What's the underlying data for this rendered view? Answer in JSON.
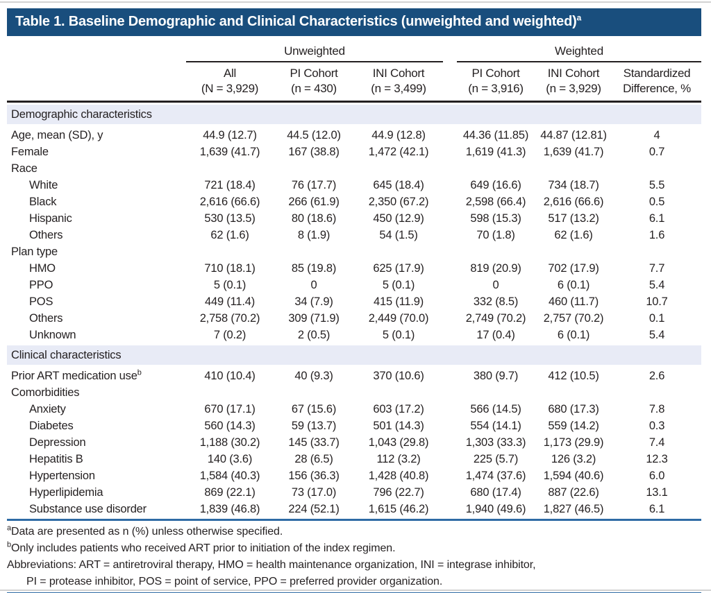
{
  "title": {
    "text": "Table 1. Baseline Demographic and Clinical Characteristics (unweighted and weighted)",
    "sup": "a"
  },
  "colors": {
    "title_bar": "#194e7d",
    "section_band": "#e8ebf6",
    "rule_blue": "#2e6ba5",
    "text": "#231f20"
  },
  "table": {
    "group_headers": {
      "unweighted": "Unweighted",
      "weighted": "Weighted"
    },
    "columns": [
      {
        "line1": "All",
        "line2": "(N = 3,929)"
      },
      {
        "line1": "PI Cohort",
        "line2": "(n = 430)"
      },
      {
        "line1": "INI Cohort",
        "line2": "(n = 3,499)"
      },
      {
        "line1": "PI Cohort",
        "line2": "(n = 3,916)"
      },
      {
        "line1": "INI Cohort",
        "line2": "(n = 3,929)"
      },
      {
        "line1": "Standardized",
        "line2": "Difference, %"
      }
    ],
    "rows": [
      {
        "type": "section",
        "label": "Demographic characteristics"
      },
      {
        "type": "data",
        "label": "Age, mean (SD), y",
        "indent": false,
        "values": [
          "44.9 (12.7)",
          "44.5 (12.0)",
          "44.9 (12.8)",
          "44.36 (11.85)",
          "44.87 (12.81)",
          "4"
        ]
      },
      {
        "type": "data",
        "label": "Female",
        "indent": false,
        "values": [
          "1,639 (41.7)",
          "167 (38.8)",
          "1,472 (42.1)",
          "1,619 (41.3)",
          "1,639 (41.7)",
          "0.7"
        ]
      },
      {
        "type": "subheader",
        "label": "Race"
      },
      {
        "type": "data",
        "label": "White",
        "indent": true,
        "values": [
          "721 (18.4)",
          "76 (17.7)",
          "645 (18.4)",
          "649 (16.6)",
          "734 (18.7)",
          "5.5"
        ]
      },
      {
        "type": "data",
        "label": "Black",
        "indent": true,
        "values": [
          "2,616 (66.6)",
          "266 (61.9)",
          "2,350 (67.2)",
          "2,598 (66.4)",
          "2,616 (66.6)",
          "0.5"
        ]
      },
      {
        "type": "data",
        "label": "Hispanic",
        "indent": true,
        "values": [
          "530 (13.5)",
          "80 (18.6)",
          "450 (12.9)",
          "598 (15.3)",
          "517 (13.2)",
          "6.1"
        ]
      },
      {
        "type": "data",
        "label": "Others",
        "indent": true,
        "values": [
          "62 (1.6)",
          "8 (1.9)",
          "54 (1.5)",
          "70 (1.8)",
          "62 (1.6)",
          "1.6"
        ]
      },
      {
        "type": "subheader",
        "label": "Plan type"
      },
      {
        "type": "data",
        "label": "HMO",
        "indent": true,
        "values": [
          "710 (18.1)",
          "85 (19.8)",
          "625 (17.9)",
          "819 (20.9)",
          "702 (17.9)",
          "7.7"
        ]
      },
      {
        "type": "data",
        "label": "PPO",
        "indent": true,
        "values": [
          "5 (0.1)",
          "0",
          "5 (0.1)",
          "0",
          "6 (0.1)",
          "5.4"
        ]
      },
      {
        "type": "data",
        "label": "POS",
        "indent": true,
        "values": [
          "449 (11.4)",
          "34 (7.9)",
          "415 (11.9)",
          "332 (8.5)",
          "460 (11.7)",
          "10.7"
        ]
      },
      {
        "type": "data",
        "label": "Others",
        "indent": true,
        "values": [
          "2,758 (70.2)",
          "309 (71.9)",
          "2,449 (70.0)",
          "2,749 (70.2)",
          "2,757 (70.2)",
          "0.1"
        ]
      },
      {
        "type": "data",
        "label": "Unknown",
        "indent": true,
        "values": [
          "7 (0.2)",
          "2 (0.5)",
          "5 (0.1)",
          "17 (0.4)",
          "6 (0.1)",
          "5.4"
        ]
      },
      {
        "type": "section",
        "label": "Clinical characteristics"
      },
      {
        "type": "data",
        "label": "Prior ART medication use",
        "label_sup": "b",
        "indent": false,
        "values": [
          "410 (10.4)",
          "40 (9.3)",
          "370 (10.6)",
          "380 (9.7)",
          "412 (10.5)",
          "2.6"
        ]
      },
      {
        "type": "subheader",
        "label": "Comorbidities"
      },
      {
        "type": "data",
        "label": "Anxiety",
        "indent": true,
        "values": [
          "670 (17.1)",
          "67 (15.6)",
          "603 (17.2)",
          "566 (14.5)",
          "680 (17.3)",
          "7.8"
        ]
      },
      {
        "type": "data",
        "label": "Diabetes",
        "indent": true,
        "values": [
          "560 (14.3)",
          "59 (13.7)",
          "501 (14.3)",
          "554 (14.1)",
          "559 (14.2)",
          "0.3"
        ]
      },
      {
        "type": "data",
        "label": "Depression",
        "indent": true,
        "values": [
          "1,188 (30.2)",
          "145 (33.7)",
          "1,043 (29.8)",
          "1,303 (33.3)",
          "1,173 (29.9)",
          "7.4"
        ]
      },
      {
        "type": "data",
        "label": "Hepatitis B",
        "indent": true,
        "values": [
          "140 (3.6)",
          "28 (6.5)",
          "112 (3.2)",
          "225 (5.7)",
          "126 (3.2)",
          "12.3"
        ]
      },
      {
        "type": "data",
        "label": "Hypertension",
        "indent": true,
        "values": [
          "1,584 (40.3)",
          "156 (36.3)",
          "1,428 (40.8)",
          "1,474 (37.6)",
          "1,594 (40.6)",
          "6.0"
        ]
      },
      {
        "type": "data",
        "label": "Hyperlipidemia",
        "indent": true,
        "values": [
          "869 (22.1)",
          "73 (17.0)",
          "796 (22.7)",
          "680 (17.4)",
          "887 (22.6)",
          "13.1"
        ]
      },
      {
        "type": "data",
        "label": "Substance use disorder",
        "indent": true,
        "values": [
          "1,839 (46.8)",
          "224 (52.1)",
          "1,615 (46.2)",
          "1,940 (49.6)",
          "1,827 (46.5)",
          "6.1"
        ]
      }
    ]
  },
  "footnotes": [
    {
      "sup": "a",
      "text": "Data are presented as n (%) unless otherwise specified.",
      "indent": false
    },
    {
      "sup": "b",
      "text": "Only includes patients who received ART prior to initiation of the index regimen.",
      "indent": false
    },
    {
      "sup": "",
      "text": "Abbreviations: ART = antiretroviral therapy, HMO = health maintenance organization, INI = integrase inhibitor,",
      "indent": false
    },
    {
      "sup": "",
      "text": "PI = protease inhibitor, POS = point of service, PPO = preferred provider organization.",
      "indent": true
    }
  ]
}
